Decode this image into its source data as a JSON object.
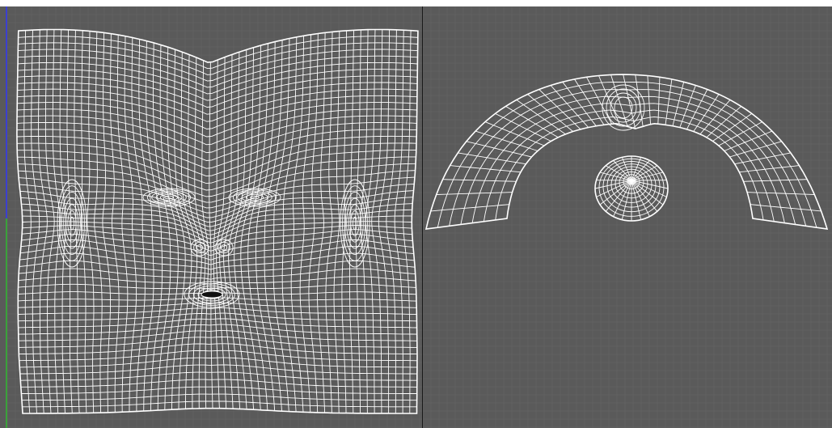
{
  "app": {
    "name": "uv-editor",
    "colors": {
      "background": "#5a5a5a",
      "grid": "#666666",
      "wire": "#ffffff",
      "divider": "#1a1a1a",
      "axis_y": "#3b3fd0",
      "axis_x": "#3aa23a"
    }
  },
  "viewports": [
    {
      "id": "left",
      "content": "face-uv-island"
    },
    {
      "id": "right",
      "content": "skull-cap-uv-island"
    }
  ]
}
